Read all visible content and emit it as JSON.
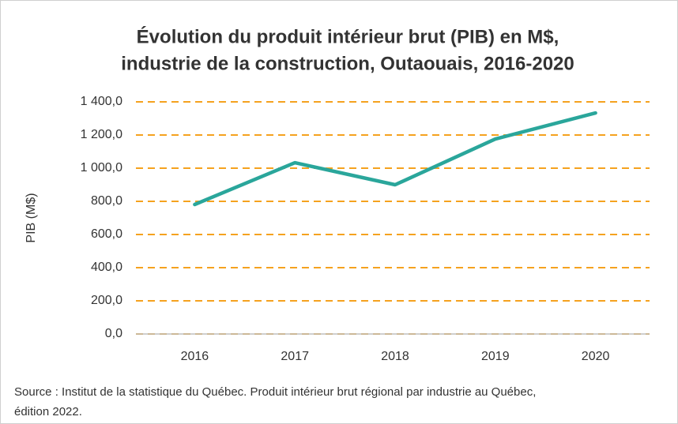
{
  "chart_data": {
    "type": "line",
    "title": [
      "Évolution du produit intérieur brut (PIB) en M$,",
      "industrie de la construction, Outaouais, 2016-2020"
    ],
    "y_label": "PIB (M$)",
    "categories": [
      "2016",
      "2017",
      "2018",
      "2019",
      "2020"
    ],
    "values": [
      781,
      1033,
      900,
      1176,
      1333
    ],
    "color": "#2aa69b",
    "ylim": [
      0,
      1400
    ],
    "yticks": [
      {
        "value": 0,
        "label": "0,0"
      },
      {
        "value": 200,
        "label": "200,0"
      },
      {
        "value": 400,
        "label": "400,0"
      },
      {
        "value": 600,
        "label": "600,0"
      },
      {
        "value": 800,
        "label": "800,0"
      },
      {
        "value": 1000,
        "label": "1 000,0"
      },
      {
        "value": 1200,
        "label": "1 200,0"
      },
      {
        "value": 1400,
        "label": "1 400,0"
      }
    ],
    "grid": true,
    "grid_color": "#f5a21f",
    "source": [
      "Source : Institut de la statistique du Québec. Produit intérieur brut régional par industrie au Québec,",
      "édition 2022."
    ]
  }
}
